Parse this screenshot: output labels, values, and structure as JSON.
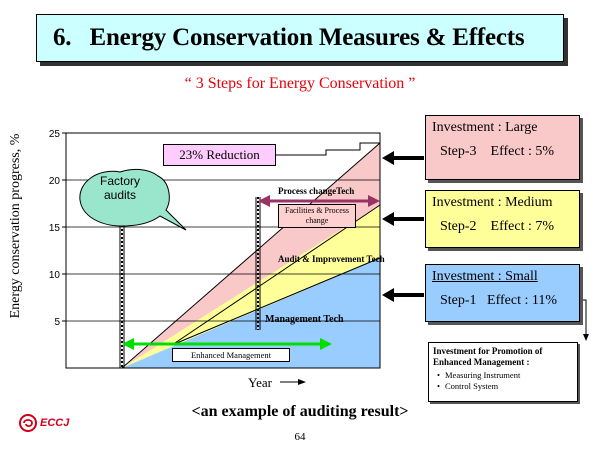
{
  "header": {
    "title": "6.   Energy Conservation Measures & Effects",
    "subtitle": "“ 3  Steps for Energy Conservation ”"
  },
  "chart": {
    "ylabel": "Energy conservation progress, %",
    "xlabel": "Year",
    "y_ticks": [
      "25",
      "20",
      "15",
      "10",
      "5"
    ],
    "reduction_label": "23% Reduction",
    "bubble_text": "Factory audits",
    "process_label": "Process changeTech",
    "facilities_label": "Facilities & Process change",
    "audit_label": "Audit & Improvement Tech",
    "management_label": "Management Tech",
    "enhanced_label": "Enhanced Management"
  },
  "steps": [
    {
      "investment": "Investment : Large",
      "effect": "Step-3    Effect : 5%"
    },
    {
      "investment": "Investment : Medium",
      "effect": "Step-2    Effect : 7%"
    },
    {
      "investment": "Investment : Small",
      "effect": "Step-1   Effect : 11%"
    }
  ],
  "promotion": {
    "title": "Investment for Promotion of Enhanced Management :",
    "items": [
      "Measuring Instrument",
      "Control System"
    ]
  },
  "caption": "<an example of auditing result>",
  "logo": "ECCJ",
  "page_number": "64",
  "colors": {
    "title_bg": "#ccffff",
    "subtitle": "#e8000b",
    "step3": "#f9c8c8",
    "step2": "#ffff99",
    "step1": "#99ccff",
    "bubble": "#99e6cc",
    "process_arrow": "#993366",
    "enhanced_arrow": "#00dd00"
  },
  "icons": [
    "eccj-logo-icon",
    "arrow-right-icon"
  ]
}
